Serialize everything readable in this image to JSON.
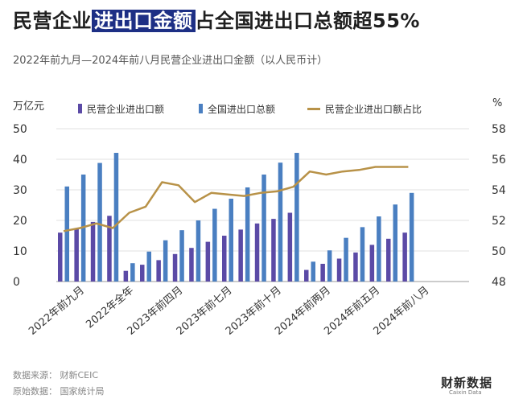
{
  "header": {
    "title_pre": "民营企业",
    "title_hl": "进出口金额",
    "title_post": "占全国进出口总额超55%",
    "subtitle": "2022年前九月—2024年前八月民营企业进出口金额（以人民币计）"
  },
  "footer": {
    "source": "数据来源：  财新CEIC",
    "raw": "原始数据：  国家统计局"
  },
  "logo": {
    "main": "财新数据",
    "sub": "Caixin Data"
  },
  "colors": {
    "private": "#5b4aa6",
    "total": "#4a7fc1",
    "share": "#b89248",
    "highlight": "#1d2f85"
  },
  "chart_data": {
    "type": "bar",
    "combo": "bar+line",
    "left_unit": "万亿元",
    "right_unit": "%",
    "ylim_left": [
      0,
      50
    ],
    "yticks_left": [
      0,
      10,
      20,
      30,
      40,
      50
    ],
    "ylim_right": [
      48,
      58
    ],
    "yticks_right": [
      48,
      50,
      52,
      54,
      56,
      58
    ],
    "x_tick_labels": [
      "2022年前九月",
      "2022年全年",
      "2023年前四月",
      "2023年前七月",
      "2023年前十月",
      "2024年前两月",
      "2024年前五月",
      "2024年前八月"
    ],
    "x_tick_positions": [
      1,
      4,
      7,
      10,
      13,
      16,
      19,
      22
    ],
    "series": [
      {
        "name": "民营企业进出口额",
        "kind": "bar",
        "axis": "left",
        "values": [
          16,
          17.5,
          19.5,
          21.5,
          3.5,
          5.5,
          7,
          9,
          11,
          13,
          15,
          17,
          19,
          20.5,
          22.5,
          3.8,
          5.8,
          7.5,
          9.5,
          12,
          14,
          16
        ]
      },
      {
        "name": "全国进出口总额",
        "kind": "bar",
        "axis": "left",
        "values": [
          31.1,
          35,
          38.8,
          42.1,
          6,
          9.8,
          13.5,
          16.8,
          20,
          23.8,
          27.1,
          30.8,
          35,
          38.9,
          42.1,
          6.5,
          10.2,
          14.3,
          17.8,
          21.3,
          25.2,
          29
        ]
      },
      {
        "name": "民营企业进出口额占比",
        "kind": "line",
        "axis": "right",
        "values": [
          51.3,
          51.5,
          51.8,
          51.5,
          52.5,
          52.9,
          54.5,
          54.3,
          53.2,
          53.8,
          53.7,
          53.6,
          53.8,
          53.9,
          54.2,
          55.2,
          55.0,
          55.2,
          55.3,
          55.5,
          55.5,
          55.5
        ]
      }
    ]
  }
}
